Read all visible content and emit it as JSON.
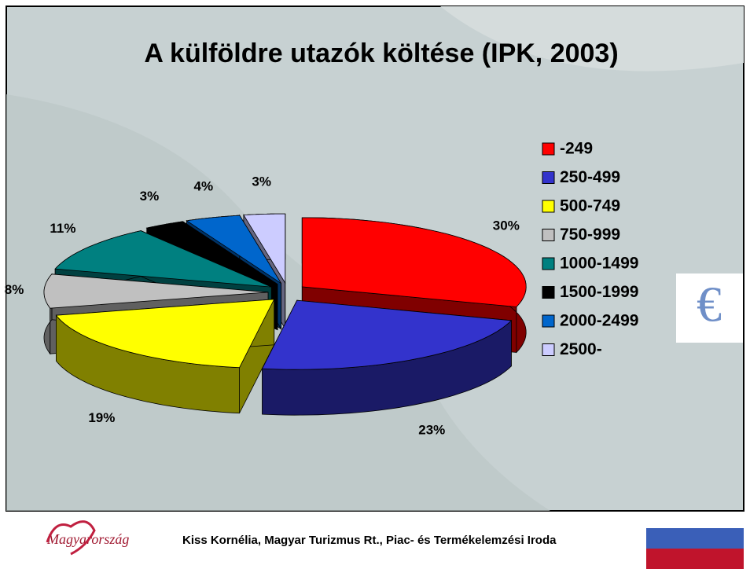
{
  "chart_data": {
    "type": "pie",
    "title": "A külföldre utazók költése (IPK, 2003)",
    "categories": [
      "-249",
      "250-499",
      "500-749",
      "750-999",
      "1000-1499",
      "1500-1999",
      "2000-2499",
      "2500-"
    ],
    "values": [
      30,
      23,
      19,
      8,
      11,
      3,
      4,
      3
    ],
    "colors": [
      "#ff0000",
      "#3333cc",
      "#ffff00",
      "#c0c0c0",
      "#008080",
      "#000000",
      "#0066cc",
      "#ccccff"
    ],
    "legend": "right"
  },
  "decoration": {
    "euro_icon": "€"
  },
  "footer": {
    "logo": "Magyarország",
    "credit": "Kiss Kornélia, Magyar Turizmus Rt., Piac- és Termékelemzési Iroda"
  }
}
